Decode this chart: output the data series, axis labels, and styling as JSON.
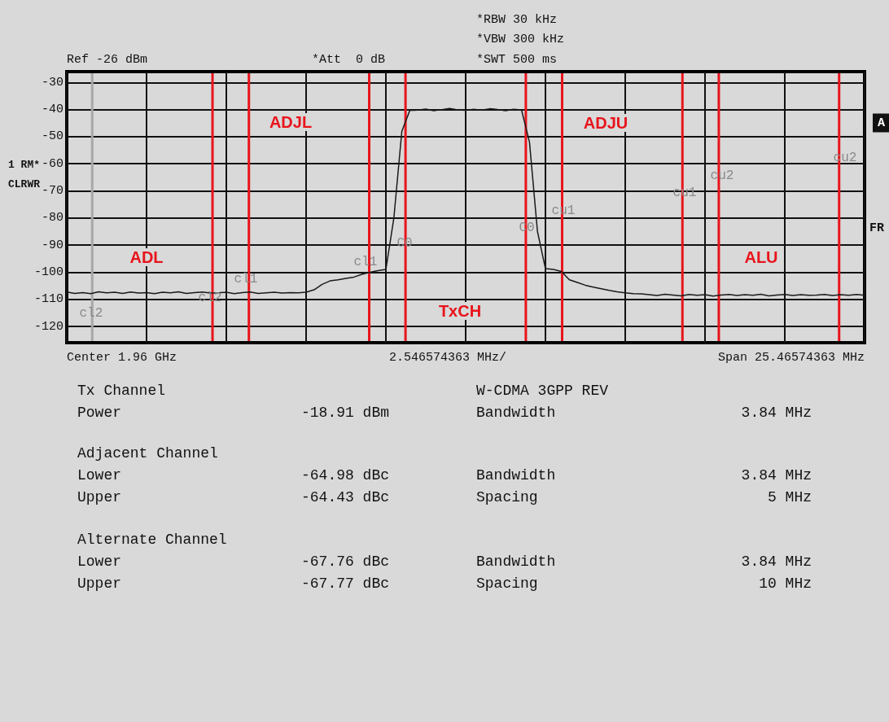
{
  "chart_data": {
    "type": "line",
    "categories": [
      null,
      null,
      null,
      null,
      null,
      null,
      null,
      null,
      null,
      null,
      null,
      null,
      null,
      null,
      null,
      null,
      null,
      null,
      null,
      null,
      null,
      null,
      null,
      null,
      null,
      null,
      null,
      null,
      null,
      null,
      null,
      null,
      null,
      null,
      null,
      null,
      null,
      null,
      null,
      null,
      null,
      null,
      null,
      null,
      null,
      null,
      null,
      null,
      null,
      null,
      null,
      null,
      null,
      null,
      null,
      null,
      null,
      null,
      null,
      null,
      null,
      null,
      null,
      null,
      null,
      null,
      null,
      null,
      null,
      null,
      null,
      null,
      null,
      null,
      null,
      null,
      null,
      null,
      null,
      null,
      null,
      null,
      null,
      null,
      null,
      null,
      null,
      null,
      null,
      null,
      null,
      null,
      null,
      null,
      null,
      null,
      null,
      null,
      null,
      null,
      null
    ],
    "series": [
      {
        "color": "#1a1a1a",
        "values": [
          -107.3,
          -107.8,
          -107.5,
          -107.9,
          -107.2,
          -107.6,
          -107.4,
          -107.8,
          -107.3,
          -107.7,
          -107.5,
          -107.9,
          -107.4,
          -107.6,
          -107.2,
          -107.8,
          -107.5,
          -107.3,
          -107.7,
          -107.6,
          -107.4,
          -107.9,
          -107.5,
          -107.3,
          -107.8,
          -107.6,
          -107.4,
          -107.7,
          -107.5,
          -107.6,
          -107.4,
          -106.5,
          -104.5,
          -103.2,
          -102.8,
          -102.3,
          -101.8,
          -100.8,
          -100,
          -99.4,
          -99,
          -80,
          -48,
          -40.3,
          -40.2,
          -39.8,
          -40.4,
          -40,
          -39.6,
          -40.1,
          -40.3,
          -39.9,
          -40.2,
          -39.7,
          -40,
          -40.4,
          -39.9,
          -40.1,
          -52,
          -85,
          -98.7,
          -99,
          -99.7,
          -102.8,
          -103.8,
          -104.8,
          -105.5,
          -106.1,
          -106.7,
          -107.2,
          -107.6,
          -107.9,
          -108,
          -108.3,
          -108.6,
          -108.1,
          -108.4,
          -108.7,
          -108.2,
          -108.5,
          -108.3,
          -108.8,
          -108.4,
          -108.2,
          -108.6,
          -108.3,
          -108.5,
          -108.1,
          -108.7,
          -108.4,
          -108.2,
          -108.6,
          -108.3,
          -108.5,
          -108.4,
          -108.2,
          -108.6,
          -108.3,
          -108.5,
          -108.2,
          -108.5
        ]
      }
    ],
    "ylim": [
      -126,
      -26
    ],
    "yticks": [
      -30,
      -40,
      -50,
      -60,
      -70,
      -80,
      -90,
      -100,
      -110,
      -120
    ],
    "grid": true,
    "marker": "none",
    "line_style": "solid",
    "annotations": [
      "Ref -26 dBm",
      "*Att  0 dB",
      "*RBW 30 kHz",
      "*VBW 300 kHz",
      "*SWT 500 ms",
      "1 RM*",
      "CLRWR",
      "A",
      "FR",
      "Center 1.96 GHz",
      "2.546574363 MHz/",
      "Span 25.46574363 MHz",
      "Tx Channel",
      "Power",
      "-18.91 dBm",
      "W-CDMA 3GPP REV",
      "Bandwidth",
      "3.84 MHz",
      "Adjacent Channel",
      "Lower",
      "-64.98 dBc",
      "Bandwidth",
      "3.84 MHz",
      "Upper",
      "-64.43 dBc",
      "Spacing",
      "5 MHz",
      "Alternate Channel",
      "Lower",
      "-67.76 dBc",
      "Bandwidth",
      "3.84 MHz",
      "Upper",
      "-67.77 dBc",
      "Spacing",
      "10 MHz",
      "ADL",
      "ADJL",
      "TxCH",
      "ADJU",
      "ALU",
      "cl2",
      "cl2",
      "cl1",
      "cl1",
      "C0",
      "C0",
      "cu1",
      "cu1",
      "cu2",
      "cu2"
    ]
  }
}
